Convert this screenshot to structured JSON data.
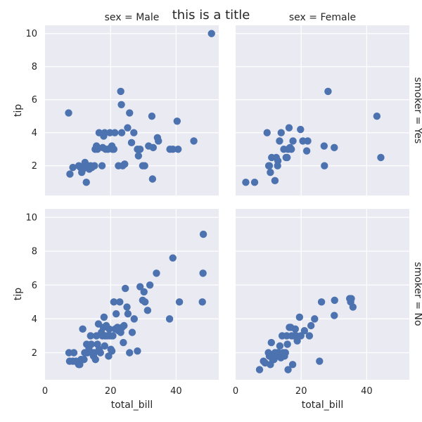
{
  "chart_data": {
    "type": "scatter",
    "title": "this is a title",
    "col_var": "sex",
    "row_var": "smoker",
    "xlabel": "total_bill",
    "ylabel": "tip",
    "xlim": [
      0,
      53
    ],
    "ylim_top": [
      0.2,
      10.5
    ],
    "ylim_bottom": [
      0.4,
      10.5
    ],
    "xticks": [
      0,
      20,
      40
    ],
    "yticks": [
      2,
      4,
      6,
      8,
      10
    ],
    "panels": [
      {
        "col_title": "sex = Male",
        "row_title": "smoker = Yes",
        "points": [
          [
            7.2,
            5.2
          ],
          [
            7.6,
            1.5
          ],
          [
            8.5,
            1.9
          ],
          [
            10.3,
            2.0
          ],
          [
            10.8,
            1.9
          ],
          [
            11.2,
            1.6
          ],
          [
            11.6,
            1.8
          ],
          [
            12.2,
            2.2
          ],
          [
            12.6,
            1.0
          ],
          [
            13.0,
            2.0
          ],
          [
            13.5,
            1.8
          ],
          [
            13.9,
            2.0
          ],
          [
            14.3,
            1.9
          ],
          [
            15.1,
            2.0
          ],
          [
            15.3,
            3.0
          ],
          [
            15.7,
            3.2
          ],
          [
            16.0,
            3.0
          ],
          [
            16.5,
            4.0
          ],
          [
            17.4,
            2.0
          ],
          [
            17.6,
            3.1
          ],
          [
            17.9,
            3.8
          ],
          [
            18.2,
            4.0
          ],
          [
            18.5,
            3.0
          ],
          [
            19.2,
            3.0
          ],
          [
            19.8,
            4.0
          ],
          [
            20.1,
            3.1
          ],
          [
            20.4,
            3.2
          ],
          [
            20.6,
            3.0
          ],
          [
            21.0,
            3.0
          ],
          [
            21.3,
            4.0
          ],
          [
            22.4,
            2.0
          ],
          [
            23.1,
            6.5
          ],
          [
            23.3,
            5.7
          ],
          [
            23.4,
            4.0
          ],
          [
            23.7,
            2.0
          ],
          [
            24.3,
            2.1
          ],
          [
            25.2,
            4.3
          ],
          [
            25.8,
            5.2
          ],
          [
            26.4,
            3.4
          ],
          [
            27.1,
            4.0
          ],
          [
            28.2,
            3.0
          ],
          [
            28.5,
            2.6
          ],
          [
            29.0,
            3.0
          ],
          [
            29.8,
            2.0
          ],
          [
            30.4,
            2.0
          ],
          [
            31.6,
            3.2
          ],
          [
            32.6,
            5.0
          ],
          [
            32.8,
            1.2
          ],
          [
            33.0,
            3.1
          ],
          [
            34.3,
            3.7
          ],
          [
            34.6,
            3.5
          ],
          [
            38.1,
            3.0
          ],
          [
            39.0,
            3.0
          ],
          [
            40.3,
            4.7
          ],
          [
            40.6,
            3.0
          ],
          [
            45.4,
            3.5
          ],
          [
            50.8,
            10.0
          ]
        ]
      },
      {
        "col_title": "sex = Female",
        "row_title": "smoker = Yes",
        "points": [
          [
            3.1,
            1.0
          ],
          [
            5.8,
            1.0
          ],
          [
            9.6,
            4.0
          ],
          [
            10.1,
            2.0
          ],
          [
            10.3,
            2.0
          ],
          [
            10.6,
            1.6
          ],
          [
            11.0,
            2.5
          ],
          [
            12.0,
            1.1
          ],
          [
            12.4,
            2.5
          ],
          [
            12.8,
            2.0
          ],
          [
            12.9,
            2.3
          ],
          [
            13.4,
            3.5
          ],
          [
            13.9,
            4.0
          ],
          [
            14.7,
            3.0
          ],
          [
            15.4,
            2.5
          ],
          [
            15.7,
            2.5
          ],
          [
            16.0,
            3.0
          ],
          [
            16.3,
            4.3
          ],
          [
            16.6,
            3.1
          ],
          [
            17.0,
            3.0
          ],
          [
            17.5,
            3.5
          ],
          [
            19.8,
            4.2
          ],
          [
            20.5,
            3.5
          ],
          [
            21.7,
            2.9
          ],
          [
            22.0,
            3.5
          ],
          [
            27.0,
            3.2
          ],
          [
            27.1,
            2.0
          ],
          [
            28.2,
            6.5
          ],
          [
            30.1,
            3.1
          ],
          [
            43.1,
            5.0
          ],
          [
            44.3,
            2.5
          ]
        ]
      },
      {
        "col_title": "",
        "row_title": "smoker = No",
        "points": [
          [
            7.3,
            2.0
          ],
          [
            7.5,
            1.5
          ],
          [
            8.5,
            1.5
          ],
          [
            8.8,
            2.0
          ],
          [
            9.5,
            1.5
          ],
          [
            10.0,
            1.4
          ],
          [
            10.3,
            1.3
          ],
          [
            10.6,
            1.3
          ],
          [
            11.0,
            1.6
          ],
          [
            11.5,
            3.4
          ],
          [
            11.9,
            1.6
          ],
          [
            12.1,
            2.0
          ],
          [
            12.5,
            2.0
          ],
          [
            12.7,
            2.5
          ],
          [
            13.0,
            2.0
          ],
          [
            13.4,
            2.3
          ],
          [
            13.9,
            3.0
          ],
          [
            14.1,
            2.5
          ],
          [
            14.5,
            2.0
          ],
          [
            14.8,
            1.8
          ],
          [
            15.0,
            2.0
          ],
          [
            15.4,
            1.6
          ],
          [
            15.7,
            3.0
          ],
          [
            16.0,
            2.5
          ],
          [
            16.3,
            3.7
          ],
          [
            16.5,
            2.2
          ],
          [
            16.9,
            2.0
          ],
          [
            17.2,
            3.2
          ],
          [
            17.5,
            3.0
          ],
          [
            17.8,
            3.5
          ],
          [
            18.0,
            4.1
          ],
          [
            18.2,
            2.4
          ],
          [
            18.4,
            3.0
          ],
          [
            18.7,
            3.6
          ],
          [
            19.0,
            3.0
          ],
          [
            19.4,
            1.8
          ],
          [
            19.6,
            3.4
          ],
          [
            19.9,
            3.0
          ],
          [
            20.1,
            2.2
          ],
          [
            20.4,
            2.1
          ],
          [
            20.7,
            3.0
          ],
          [
            21.0,
            5.0
          ],
          [
            21.4,
            3.4
          ],
          [
            21.7,
            4.3
          ],
          [
            22.1,
            3.5
          ],
          [
            22.4,
            3.3
          ],
          [
            22.8,
            5.0
          ],
          [
            23.1,
            3.2
          ],
          [
            23.5,
            3.5
          ],
          [
            23.9,
            2.6
          ],
          [
            24.1,
            3.6
          ],
          [
            24.5,
            5.8
          ],
          [
            25.0,
            4.7
          ],
          [
            25.3,
            4.3
          ],
          [
            25.8,
            2.0
          ],
          [
            26.6,
            3.2
          ],
          [
            27.2,
            4.0
          ],
          [
            28.2,
            2.1
          ],
          [
            29.0,
            5.9
          ],
          [
            29.8,
            5.1
          ],
          [
            30.2,
            5.6
          ],
          [
            30.5,
            5.0
          ],
          [
            31.3,
            4.5
          ],
          [
            32.0,
            6.0
          ],
          [
            34.0,
            6.7
          ],
          [
            38.0,
            4.0
          ],
          [
            39.0,
            7.6
          ],
          [
            41.0,
            5.0
          ],
          [
            48.0,
            5.0
          ],
          [
            48.2,
            6.7
          ],
          [
            48.3,
            9.0
          ]
        ]
      },
      {
        "col_title": "",
        "row_title": "smoker = No",
        "points": [
          [
            7.3,
            1.0
          ],
          [
            8.5,
            1.5
          ],
          [
            9.0,
            1.4
          ],
          [
            10.0,
            2.0
          ],
          [
            10.3,
            1.8
          ],
          [
            10.6,
            1.3
          ],
          [
            10.9,
            2.6
          ],
          [
            11.3,
            1.6
          ],
          [
            11.7,
            1.6
          ],
          [
            12.0,
            2.0
          ],
          [
            12.4,
            1.8
          ],
          [
            12.8,
            2.0
          ],
          [
            13.1,
            2.0
          ],
          [
            13.5,
            2.4
          ],
          [
            13.8,
            1.7
          ],
          [
            14.2,
            3.0
          ],
          [
            14.5,
            2.0
          ],
          [
            14.9,
            1.8
          ],
          [
            15.2,
            2.0
          ],
          [
            15.6,
            3.0
          ],
          [
            15.8,
            2.5
          ],
          [
            16.0,
            1.0
          ],
          [
            16.4,
            3.5
          ],
          [
            16.8,
            3.5
          ],
          [
            17.1,
            3.0
          ],
          [
            17.4,
            1.3
          ],
          [
            17.8,
            3.0
          ],
          [
            18.2,
            3.4
          ],
          [
            18.5,
            3.0
          ],
          [
            18.8,
            2.7
          ],
          [
            19.5,
            4.1
          ],
          [
            19.9,
            3.0
          ],
          [
            21.0,
            3.3
          ],
          [
            22.5,
            3.0
          ],
          [
            23.0,
            3.6
          ],
          [
            24.1,
            4.0
          ],
          [
            25.6,
            1.5
          ],
          [
            26.2,
            5.0
          ],
          [
            30.1,
            4.2
          ],
          [
            30.2,
            5.1
          ],
          [
            34.8,
            5.2
          ],
          [
            35.1,
            5.0
          ],
          [
            35.3,
            5.2
          ],
          [
            35.8,
            4.7
          ]
        ]
      }
    ]
  }
}
